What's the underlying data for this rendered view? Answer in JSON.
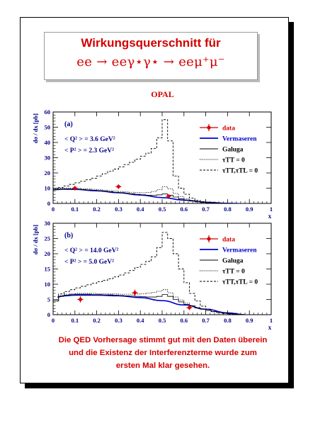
{
  "title": {
    "line1": "Wirkungsquerschnitt für",
    "line2": "ee → eeγ⋆γ⋆ → eeμ⁺μ⁻"
  },
  "experiment": "OPAL",
  "caption": [
    "Die QED Vorhersage stimmt gut mit den Daten überein",
    "und die Existenz der Interferenzterme wurde zum",
    "ersten Mal klar gesehen."
  ],
  "colors": {
    "accent": "#d40000",
    "theory": "#0000cc",
    "axis": "#000088"
  },
  "chart_data": [
    {
      "type": "line",
      "panel_label": "(a)",
      "annotations": [
        "< Q² > = 3.6 GeV²",
        "< P² > = 2.3 GeV²"
      ],
      "ylabel": "dσ / dx [pb]",
      "xlabel": "x",
      "xlim": [
        0,
        1
      ],
      "ylim": [
        0,
        60
      ],
      "xticks": [
        "0",
        "0.1",
        "0.2",
        "0.3",
        "0.4",
        "0.5",
        "0.6",
        "0.7",
        "0.8",
        "0.9",
        "1"
      ],
      "yticks": [
        "0",
        "10",
        "20",
        "30",
        "40",
        "50",
        "60"
      ],
      "legend": [
        "data",
        "Vermaseren",
        "Galuga",
        "τTT = 0",
        "τTT,τTL = 0"
      ],
      "data_points": [
        {
          "x": 0.1,
          "y": 10.0,
          "err": 1.5
        },
        {
          "x": 0.3,
          "y": 11.0,
          "err": 1.5
        },
        {
          "x": 0.53,
          "y": 4.8,
          "err": 1.0
        }
      ],
      "series": [
        {
          "name": "Vermaseren",
          "style": "smooth",
          "x": [
            0.0,
            0.05,
            0.1,
            0.2,
            0.3,
            0.4,
            0.5,
            0.6,
            0.7,
            0.8,
            0.85
          ],
          "y": [
            9.0,
            9.3,
            9.2,
            8.3,
            7.0,
            5.5,
            3.8,
            2.2,
            0.8,
            0.1,
            0.0
          ]
        },
        {
          "name": "Galuga",
          "style": "solid",
          "bins": [
            0,
            0.025,
            0.05,
            0.075,
            0.1,
            0.125,
            0.15,
            0.175,
            0.2,
            0.225,
            0.25,
            0.275,
            0.3,
            0.325,
            0.35,
            0.375,
            0.4,
            0.425,
            0.45,
            0.475,
            0.5,
            0.525,
            0.55,
            0.575,
            0.6,
            0.625,
            0.65,
            0.675,
            0.7,
            0.725,
            0.75,
            0.775,
            0.8,
            0.825
          ],
          "y": [
            9.0,
            9.4,
            9.5,
            9.4,
            9.3,
            9.1,
            8.9,
            8.6,
            8.3,
            8.0,
            7.7,
            7.3,
            7.0,
            6.6,
            6.3,
            6.0,
            5.7,
            5.4,
            5.2,
            5.6,
            6.2,
            5.4,
            4.2,
            3.0,
            2.0,
            1.5,
            1.0,
            0.6,
            0.35,
            0.2,
            0.1,
            0.05,
            0.0
          ]
        },
        {
          "name": "τTT = 0",
          "style": "dotted",
          "bins": [
            0,
            0.025,
            0.05,
            0.075,
            0.1,
            0.125,
            0.15,
            0.175,
            0.2,
            0.225,
            0.25,
            0.275,
            0.3,
            0.325,
            0.35,
            0.375,
            0.4,
            0.425,
            0.45,
            0.475,
            0.5,
            0.525,
            0.55,
            0.575,
            0.6,
            0.625,
            0.65,
            0.675,
            0.7,
            0.725,
            0.75,
            0.775,
            0.8,
            0.825
          ],
          "y": [
            9.5,
            10.0,
            10.1,
            10.0,
            9.9,
            9.7,
            9.5,
            9.2,
            9.0,
            8.7,
            8.4,
            8.1,
            7.8,
            7.5,
            7.3,
            7.1,
            7.0,
            7.2,
            7.8,
            9.0,
            11.0,
            9.5,
            6.5,
            4.5,
            3.0,
            2.0,
            1.4,
            0.9,
            0.5,
            0.3,
            0.15,
            0.05,
            0.0
          ]
        },
        {
          "name": "τTT,τTL = 0",
          "style": "dashed",
          "bins": [
            0,
            0.025,
            0.05,
            0.075,
            0.1,
            0.125,
            0.15,
            0.175,
            0.2,
            0.225,
            0.25,
            0.275,
            0.3,
            0.325,
            0.35,
            0.375,
            0.4,
            0.425,
            0.45,
            0.475,
            0.5,
            0.525,
            0.55,
            0.575,
            0.6,
            0.625,
            0.65,
            0.675,
            0.7,
            0.725,
            0.75,
            0.775,
            0.8,
            0.825
          ],
          "y": [
            9.0,
            10.5,
            11.5,
            12.5,
            13.5,
            14.5,
            15.5,
            16.5,
            18.0,
            19.5,
            21.0,
            22.5,
            24.0,
            25.5,
            27.0,
            29.0,
            31.0,
            33.0,
            36.0,
            43.0,
            55.0,
            41.0,
            18.0,
            10.0,
            6.0,
            3.5,
            2.0,
            1.2,
            0.7,
            0.4,
            0.2,
            0.05,
            0.0
          ]
        }
      ]
    },
    {
      "type": "line",
      "panel_label": "(b)",
      "annotations": [
        "< Q² > = 14.0 GeV²",
        "< P² > = 5.0 GeV²"
      ],
      "ylabel": "dσ / dx [pb]",
      "xlabel": "x",
      "xlim": [
        0,
        1
      ],
      "ylim": [
        0,
        30
      ],
      "xticks": [
        "0",
        "0.1",
        "0.2",
        "0.3",
        "0.4",
        "0.5",
        "0.6",
        "0.7",
        "0.8",
        "0.9",
        "1"
      ],
      "yticks": [
        "0",
        "5",
        "10",
        "15",
        "20",
        "25",
        "30"
      ],
      "legend": [
        "data",
        "Vermaseren",
        "Galuga",
        "τTT = 0",
        "τTT,τTL = 0"
      ],
      "data_points": [
        {
          "x": 0.125,
          "y": 5.0,
          "err": 1.0
        },
        {
          "x": 0.375,
          "y": 7.2,
          "err": 1.0
        },
        {
          "x": 0.625,
          "y": 2.3,
          "err": 0.8
        }
      ],
      "series": [
        {
          "name": "Vermaseren",
          "style": "smooth",
          "x": [
            0.02,
            0.05,
            0.1,
            0.2,
            0.3,
            0.4,
            0.5,
            0.6,
            0.7,
            0.8,
            0.88
          ],
          "y": [
            5.8,
            6.2,
            6.4,
            6.4,
            6.2,
            5.6,
            4.6,
            3.2,
            1.8,
            0.6,
            0.0
          ]
        },
        {
          "name": "Galuga",
          "style": "solid",
          "bins": [
            0,
            0.025,
            0.05,
            0.075,
            0.1,
            0.125,
            0.15,
            0.175,
            0.2,
            0.225,
            0.25,
            0.275,
            0.3,
            0.325,
            0.35,
            0.375,
            0.4,
            0.425,
            0.45,
            0.475,
            0.5,
            0.525,
            0.55,
            0.575,
            0.6,
            0.625,
            0.65,
            0.675,
            0.7,
            0.725,
            0.75,
            0.775,
            0.8,
            0.825,
            0.85,
            0.875
          ],
          "y": [
            4.5,
            6.0,
            6.4,
            6.6,
            6.7,
            6.7,
            6.7,
            6.6,
            6.6,
            6.5,
            6.5,
            6.4,
            6.3,
            6.2,
            6.1,
            6.0,
            5.9,
            5.8,
            5.8,
            6.0,
            6.6,
            6.0,
            5.0,
            4.2,
            3.4,
            2.8,
            2.2,
            1.8,
            1.4,
            1.0,
            0.7,
            0.5,
            0.3,
            0.15,
            0.05
          ]
        },
        {
          "name": "τTT = 0",
          "style": "dotted",
          "bins": [
            0,
            0.025,
            0.05,
            0.075,
            0.1,
            0.125,
            0.15,
            0.175,
            0.2,
            0.225,
            0.25,
            0.275,
            0.3,
            0.325,
            0.35,
            0.375,
            0.4,
            0.425,
            0.45,
            0.475,
            0.5,
            0.525,
            0.55,
            0.575,
            0.6,
            0.625,
            0.65,
            0.675,
            0.7,
            0.725,
            0.75,
            0.775,
            0.8,
            0.825,
            0.85,
            0.875
          ],
          "y": [
            4.5,
            6.2,
            6.7,
            6.9,
            7.0,
            7.0,
            7.0,
            7.0,
            6.9,
            6.9,
            6.8,
            6.8,
            6.7,
            6.7,
            6.7,
            6.8,
            6.9,
            7.1,
            7.3,
            7.7,
            8.2,
            7.2,
            5.8,
            4.8,
            3.8,
            3.0,
            2.4,
            1.9,
            1.4,
            1.0,
            0.7,
            0.5,
            0.3,
            0.15,
            0.05
          ]
        },
        {
          "name": "τTT,τTL = 0",
          "style": "dashed",
          "bins": [
            0,
            0.025,
            0.05,
            0.075,
            0.1,
            0.125,
            0.15,
            0.175,
            0.2,
            0.225,
            0.25,
            0.275,
            0.3,
            0.325,
            0.35,
            0.375,
            0.4,
            0.425,
            0.45,
            0.475,
            0.5,
            0.525,
            0.55,
            0.575,
            0.6,
            0.625,
            0.65,
            0.675,
            0.7,
            0.725,
            0.75,
            0.775,
            0.8,
            0.825,
            0.85,
            0.875
          ],
          "y": [
            4.5,
            6.8,
            7.6,
            8.2,
            8.8,
            9.3,
            9.8,
            10.3,
            10.8,
            11.3,
            11.8,
            12.4,
            13.0,
            13.7,
            14.5,
            15.5,
            16.5,
            17.5,
            19.0,
            22.0,
            27.0,
            25.0,
            20.0,
            15.0,
            10.5,
            7.0,
            4.5,
            2.8,
            1.8,
            1.1,
            0.7,
            0.4,
            0.2,
            0.1,
            0.05
          ]
        }
      ]
    }
  ]
}
